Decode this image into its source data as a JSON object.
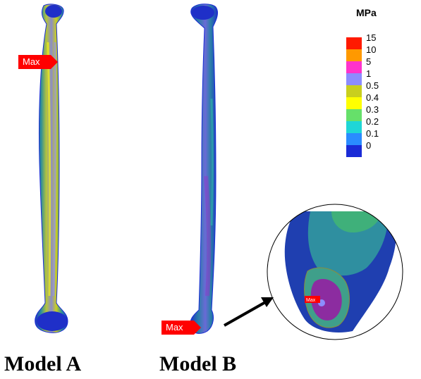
{
  "models": {
    "a_label": "Model A",
    "b_label": "Model B"
  },
  "markers": {
    "max_label_a": "Max",
    "max_label_b": "Max",
    "max_label_zoom": "Max"
  },
  "legend": {
    "unit": "MPa",
    "levels": [
      {
        "label": "15",
        "color": "#ff1a00"
      },
      {
        "label": "10",
        "color": "#ff9900"
      },
      {
        "label": "5",
        "color": "#ff33cc"
      },
      {
        "label": "1",
        "color": "#8c8cff"
      },
      {
        "label": "0.5",
        "color": "#c9cf1e"
      },
      {
        "label": "0.4",
        "color": "#ffff00"
      },
      {
        "label": "0.3",
        "color": "#66e06a"
      },
      {
        "label": "0.2",
        "color": "#1fd6d6"
      },
      {
        "label": "0.1",
        "color": "#2a8cff"
      },
      {
        "label": "0",
        "color": "#1a2bd6"
      }
    ]
  },
  "colors": {
    "base_blue": "#1f2fc8",
    "accent_red": "#ff0000"
  }
}
